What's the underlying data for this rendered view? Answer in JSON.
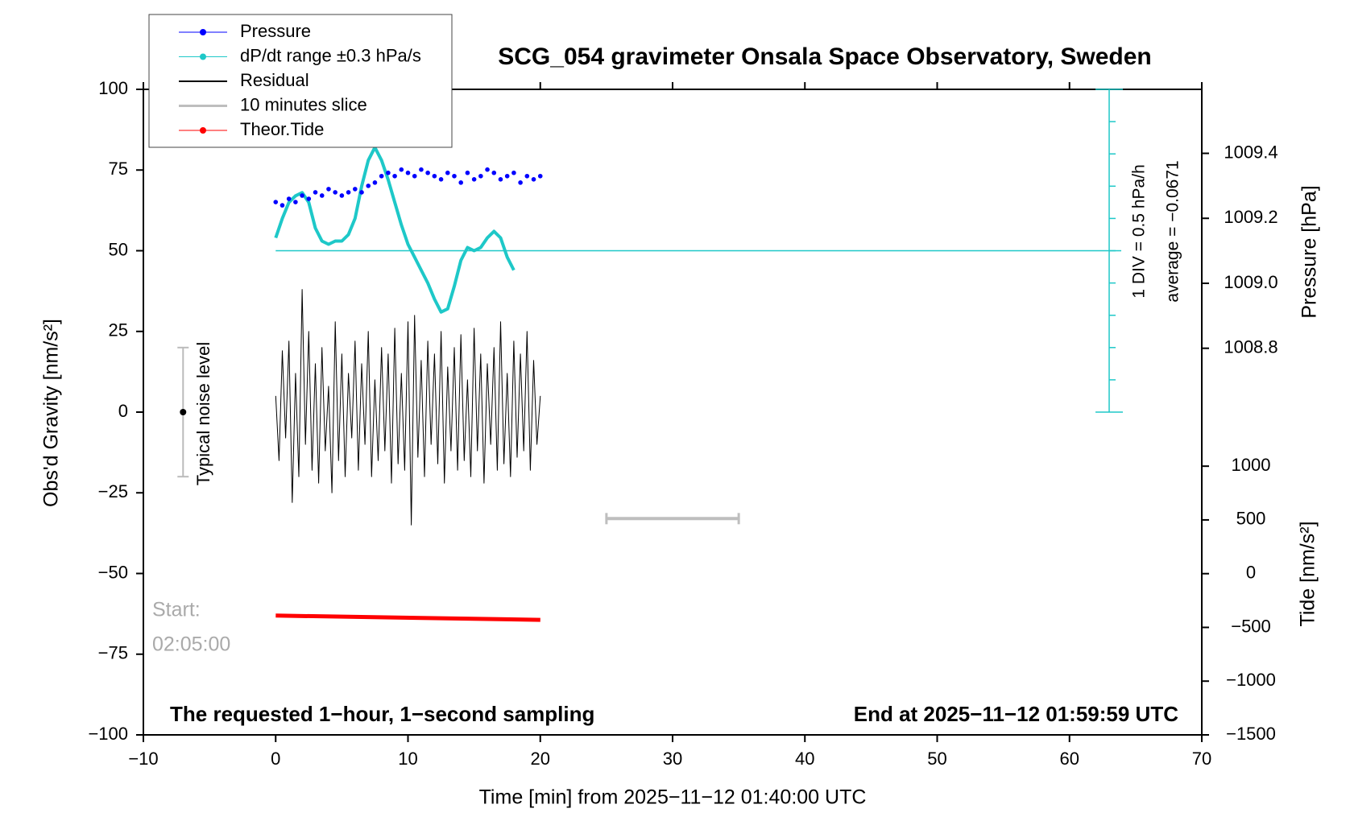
{
  "chart_data": {
    "type": "line",
    "title": "SCG_054 gravimeter Onsala Space Observatory, Sweden",
    "xlabel": "Time [min] from 2025−11−12 01:40:00 UTC",
    "ylabel": "Obs'd Gravity [nm/s²]",
    "y2label": "Pressure [hPa]",
    "y3label": "Tide [nm/s²]",
    "xlim": [
      -10,
      70
    ],
    "xticks": [
      {
        "value": -10,
        "label": "−10"
      },
      0,
      10,
      20,
      30,
      40,
      50,
      60,
      70
    ],
    "ylim": [
      -100,
      100
    ],
    "yticks": [
      {
        "value": -100,
        "label": "−100"
      },
      {
        "value": -75,
        "label": "−75"
      },
      {
        "value": -50,
        "label": "−50"
      },
      {
        "value": -25,
        "label": "−25"
      },
      0,
      25,
      50,
      75,
      100
    ],
    "y2lim": [
      1007.61,
      1009.597
    ],
    "y2ticks": [
      {
        "value": 1008.8,
        "label": "1008.8"
      },
      {
        "value": 1009.0,
        "label": "1009.0"
      },
      {
        "value": 1009.2,
        "label": "1009.2"
      },
      {
        "value": 1009.4,
        "label": "1009.4"
      }
    ],
    "y3lim": [
      -1500,
      4506
    ],
    "y3ticks": [
      {
        "value": -1500,
        "label": "−1500"
      },
      {
        "value": -1000,
        "label": "−1000"
      },
      {
        "value": -500,
        "label": "−500"
      },
      0,
      500,
      1000
    ],
    "legend": "upper left",
    "series": [
      {
        "name": "Pressure",
        "color": "#0000ff",
        "style": "dots",
        "axis": "y2",
        "x": [
          0,
          0.5,
          1,
          1.5,
          2,
          2.5,
          3,
          3.5,
          4,
          4.5,
          5,
          5.5,
          6,
          6.5,
          7,
          7.5,
          8,
          8.5,
          9,
          9.5,
          10,
          10.5,
          11,
          11.5,
          12,
          12.5,
          13,
          13.5,
          14,
          14.5,
          15,
          15.5,
          16,
          16.5,
          17,
          17.5,
          18,
          18.5,
          19,
          19.5,
          20
        ],
        "values": [
          1009.25,
          1009.24,
          1009.26,
          1009.25,
          1009.27,
          1009.26,
          1009.28,
          1009.27,
          1009.29,
          1009.28,
          1009.27,
          1009.28,
          1009.29,
          1009.28,
          1009.3,
          1009.31,
          1009.33,
          1009.34,
          1009.33,
          1009.35,
          1009.34,
          1009.33,
          1009.35,
          1009.34,
          1009.33,
          1009.32,
          1009.34,
          1009.33,
          1009.31,
          1009.34,
          1009.32,
          1009.33,
          1009.35,
          1009.34,
          1009.32,
          1009.33,
          1009.34,
          1009.31,
          1009.33,
          1009.32,
          1009.33
        ]
      },
      {
        "name": "dP/dt range ±0.3 hPa/s",
        "color": "#1ec8c8",
        "style": "line",
        "axis": "y",
        "x": [
          0,
          0.5,
          1,
          1.5,
          2,
          2.5,
          3,
          3.5,
          4,
          4.5,
          5,
          5.5,
          6,
          6.5,
          7,
          7.5,
          8,
          8.5,
          9,
          9.5,
          10,
          10.5,
          11,
          11.5,
          12,
          12.5,
          13,
          13.5,
          14,
          14.5,
          15,
          15.5,
          16,
          16.5,
          17,
          17.5,
          18
        ],
        "values": [
          54,
          60,
          65,
          67,
          68,
          65,
          57,
          53,
          52,
          53,
          53,
          55,
          60,
          70,
          78,
          82,
          78,
          72,
          65,
          58,
          52,
          48,
          44,
          40,
          35,
          31,
          32,
          39,
          47,
          51,
          50,
          51,
          54,
          56,
          54,
          48,
          44
        ]
      },
      {
        "name": "Residual",
        "color": "#000000",
        "style": "thin",
        "axis": "y",
        "x": [
          0,
          0.25,
          0.5,
          0.75,
          1,
          1.25,
          1.5,
          1.75,
          2,
          2.25,
          2.5,
          2.75,
          3,
          3.25,
          3.5,
          3.75,
          4,
          4.25,
          4.5,
          4.75,
          5,
          5.25,
          5.5,
          5.75,
          6,
          6.25,
          6.5,
          6.75,
          7,
          7.25,
          7.5,
          7.75,
          8,
          8.25,
          8.5,
          8.75,
          9,
          9.25,
          9.5,
          9.75,
          10,
          10.25,
          10.5,
          10.75,
          11,
          11.25,
          11.5,
          11.75,
          12,
          12.25,
          12.5,
          12.75,
          13,
          13.25,
          13.5,
          13.75,
          14,
          14.25,
          14.5,
          14.75,
          15,
          15.25,
          15.5,
          15.75,
          16,
          16.25,
          16.5,
          16.75,
          17,
          17.25,
          17.5,
          17.75,
          18,
          18.25,
          18.5,
          18.75,
          19,
          19.25,
          19.5,
          19.75,
          20
        ],
        "values": [
          5,
          -15,
          19,
          -8,
          22,
          -28,
          12,
          -20,
          38,
          -10,
          25,
          -18,
          15,
          -22,
          20,
          -12,
          8,
          -25,
          28,
          -15,
          18,
          -20,
          12,
          -8,
          22,
          -18,
          15,
          -10,
          25,
          -20,
          10,
          -15,
          20,
          -12,
          18,
          -22,
          26,
          -16,
          12,
          -18,
          28,
          -35,
          30,
          -14,
          16,
          -20,
          22,
          -10,
          18,
          -16,
          25,
          -22,
          14,
          -12,
          20,
          -18,
          24,
          -15,
          10,
          -20,
          26,
          -12,
          18,
          -22,
          15,
          -10,
          20,
          -18,
          28,
          -16,
          12,
          -20,
          22,
          -14,
          18,
          -12,
          25,
          -18,
          16,
          -10,
          5
        ]
      },
      {
        "name": "10 minutes slice",
        "color": "#bebebe",
        "style": "bracket",
        "axis": "y",
        "x": [
          25,
          35
        ],
        "values": [
          -33,
          -33
        ]
      },
      {
        "name": "Theor.Tide",
        "color": "#ff0000",
        "style": "thick",
        "axis": "y3",
        "x": [
          0,
          20
        ],
        "values": [
          -390,
          -430
        ]
      }
    ],
    "reference_line": {
      "y": 50,
      "x": [
        0,
        63
      ],
      "color": "#1ec8c8"
    },
    "rate_scale": {
      "x": 63,
      "range": [
        0,
        100
      ],
      "ticks": [
        0,
        10,
        20,
        30,
        40,
        50,
        60,
        70,
        80,
        90,
        100
      ],
      "label": "1 DIV = 0.5 hPa/h",
      "average": "average = −0.0671"
    },
    "noise_level": {
      "label": "Typical noise level",
      "x": -7,
      "low": -20,
      "high": 20,
      "center": 0
    },
    "start_label": [
      "Start:",
      "02:05:00"
    ],
    "footer_left": "The requested 1−hour, 1−second sampling",
    "footer_right": "End at 2025−11−12 01:59:59 UTC"
  }
}
